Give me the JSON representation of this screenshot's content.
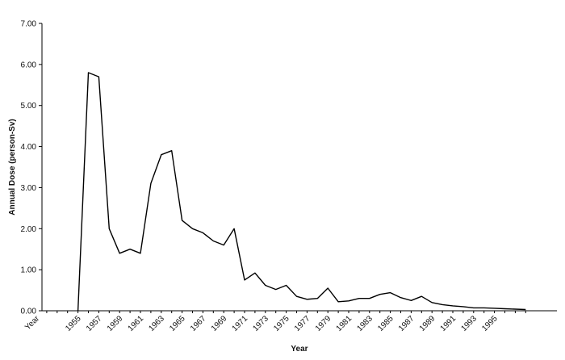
{
  "chart_data": {
    "type": "line",
    "x_label": "Year",
    "y_label": "Annual Dose (person-Sv)",
    "categories": [
      "Year",
      null,
      null,
      null,
      "1955",
      null,
      "1957",
      null,
      "1959",
      null,
      "1961",
      null,
      "1963",
      null,
      "1965",
      null,
      "1967",
      null,
      "1969",
      null,
      "1971",
      null,
      "1973",
      null,
      "1975",
      null,
      "1977",
      null,
      "1979",
      null,
      "1981",
      null,
      "1983",
      null,
      "1985",
      null,
      "1987",
      null,
      "1989",
      null,
      "1991",
      null,
      "1993",
      null,
      "1995",
      null,
      null,
      null
    ],
    "values": [
      null,
      null,
      null,
      null,
      0,
      5.8,
      5.7,
      2.0,
      1.4,
      1.5,
      1.4,
      3.1,
      3.8,
      3.9,
      2.2,
      2.0,
      1.9,
      1.7,
      1.6,
      2.0,
      0.75,
      0.92,
      0.62,
      0.52,
      0.62,
      0.35,
      0.28,
      0.3,
      0.55,
      0.22,
      0.24,
      0.3,
      0.3,
      0.4,
      0.44,
      0.32,
      0.25,
      0.35,
      0.2,
      0.15,
      0.12,
      0.1,
      0.07,
      0.07,
      0.06,
      0.05,
      0.04,
      0.03
    ],
    "color": "#000000",
    "ylim": [
      0,
      7
    ],
    "yticks": [
      {
        "value": 0,
        "label": "0.00"
      },
      {
        "value": 1,
        "label": "1.00"
      },
      {
        "value": 2,
        "label": "2.00"
      },
      {
        "value": 3,
        "label": "3.00"
      },
      {
        "value": 4,
        "label": "4.00"
      },
      {
        "value": 5,
        "label": "5.00"
      },
      {
        "value": 6,
        "label": "6.00"
      },
      {
        "value": 7,
        "label": "7.00"
      }
    ],
    "grid": false
  }
}
